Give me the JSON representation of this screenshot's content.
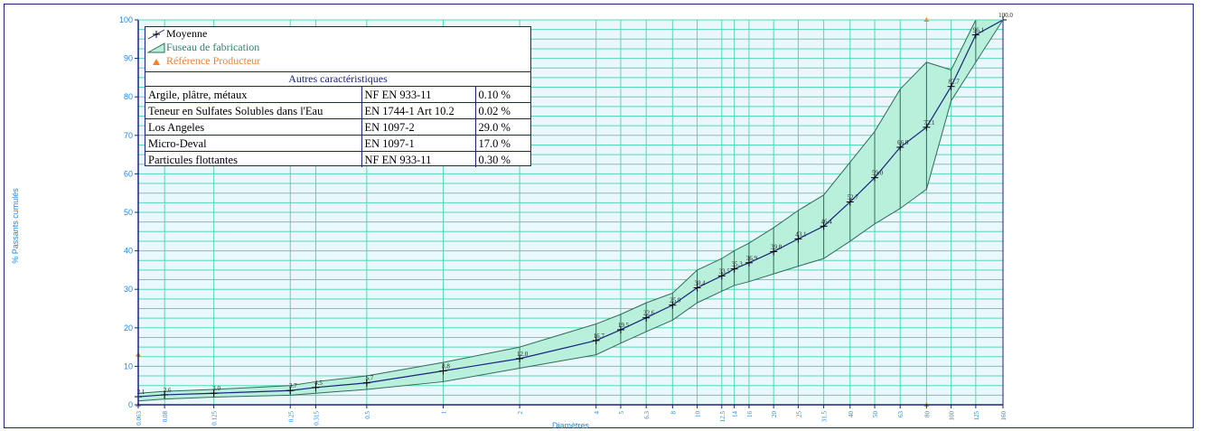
{
  "chart_data": {
    "type": "line",
    "xscale": "log",
    "xlabel": "Diamètres",
    "ylabel": "% Passants cumulés",
    "ylim": [
      0,
      100
    ],
    "yticks": [
      0,
      10,
      20,
      30,
      40,
      50,
      60,
      70,
      80,
      90,
      100
    ],
    "xticks": [
      "0.063",
      "0.08",
      "0.125",
      "0.25",
      "0.315",
      "0.5",
      "1",
      "2",
      "4",
      "5",
      "6.3",
      "8",
      "10",
      "12.5",
      "14",
      "16",
      "20",
      "25",
      "31.5",
      "40",
      "50",
      "63",
      "80",
      "100",
      "125",
      "160"
    ],
    "series": [
      {
        "name": "Moyenne",
        "x": [
          0.063,
          0.08,
          0.125,
          0.25,
          0.315,
          0.5,
          1,
          2,
          4,
          5,
          6.3,
          8,
          10,
          12.5,
          14,
          16,
          20,
          25,
          31.5,
          40,
          50,
          63,
          80,
          100,
          125,
          160
        ],
        "y": [
          2.1,
          2.6,
          3.0,
          3.7,
          4.5,
          5.7,
          8.8,
          12.0,
          16.7,
          19.5,
          22.6,
          25.9,
          30.4,
          33.5,
          35.3,
          36.9,
          39.8,
          43.1,
          46.4,
          52.7,
          59.0,
          66.9,
          72.1,
          82.7,
          96.1,
          100.0
        ],
        "labels": [
          "2.1",
          "2.6",
          "3.0",
          "3.7",
          "4.5",
          "5.7",
          "8.8",
          "12.0",
          "16.7",
          "19.5",
          "22.6",
          "25.9",
          "30.4",
          "33.5",
          "35.3",
          "36.9",
          "39.8",
          "43.1",
          "46.4",
          "52.7",
          "59.0",
          "66.9",
          "72.1",
          "82.7",
          "96.1",
          "100.0"
        ]
      },
      {
        "name": "Fuseau de fabrication",
        "x": [
          0.063,
          0.08,
          0.125,
          0.25,
          0.315,
          0.5,
          1,
          2,
          4,
          5,
          6.3,
          8,
          10,
          12.5,
          14,
          16,
          20,
          25,
          31.5,
          40,
          50,
          63,
          80,
          100,
          125,
          160
        ],
        "upper": [
          3,
          3.5,
          4,
          5,
          6,
          7.5,
          11,
          15,
          21,
          23.5,
          26.5,
          29,
          35,
          38,
          40,
          42,
          46,
          50.5,
          54.5,
          63,
          71,
          82,
          89,
          87,
          100,
          100
        ],
        "lower": [
          1,
          1.5,
          2,
          2.5,
          3,
          4,
          6,
          9.5,
          13,
          16,
          19,
          22,
          26.5,
          29.5,
          31,
          32,
          34,
          36,
          38,
          42.5,
          47,
          51,
          56,
          79,
          89,
          100
        ]
      },
      {
        "name": "Référence Producteur",
        "points": [
          [
            0.063,
            13
          ],
          [
            0.063,
            0
          ],
          [
            80,
            100
          ],
          [
            80,
            0
          ]
        ]
      }
    ],
    "legend_position": "top-left",
    "grid": true,
    "properties_table": {
      "title": "Autres caractéristiques",
      "rows": [
        {
          "name": "Argile, plâtre, métaux",
          "norm": "NF EN 933-11",
          "value": "0.10 %"
        },
        {
          "name": "Teneur en Sulfates Solubles dans l'Eau",
          "norm": "EN 1744-1 Art 10.2",
          "value": "0.02 %"
        },
        {
          "name": "Los Angeles",
          "norm": "EN 1097-2",
          "value": "29.0 %"
        },
        {
          "name": "Micro-Deval",
          "norm": "EN 1097-1",
          "value": "17.0 %"
        },
        {
          "name": "Particules flottantes",
          "norm": "NF EN 933-11",
          "value": "0.30 %"
        }
      ]
    }
  },
  "colors": {
    "plot_bg": "#eaf8fc",
    "grid": "#55d7b3",
    "band_fill": "#b9f0dc",
    "band_stroke": "#2f6b5c",
    "mean_line": "#1a237e",
    "axis": "#1a237e",
    "tick_label": "#1e88e5",
    "reference": "#ff7f27"
  }
}
